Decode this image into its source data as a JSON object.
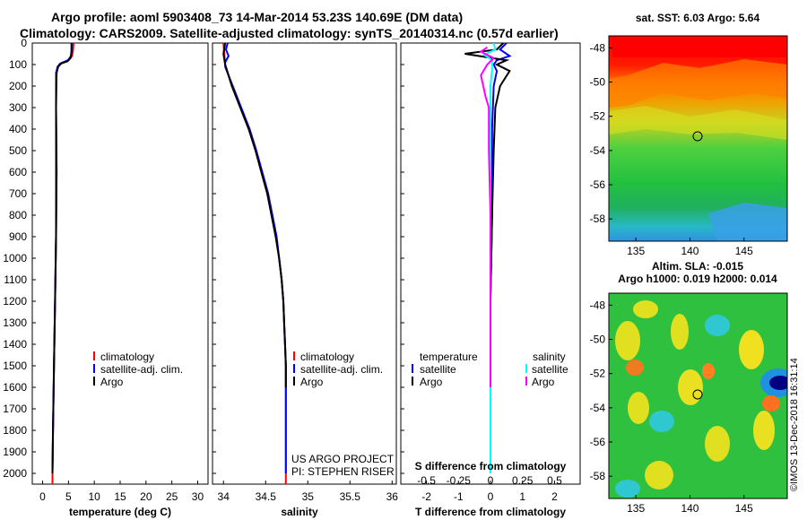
{
  "header": {
    "title_line1": "Argo profile: aoml 5903408_73 14-Mar-2014 53.23S 140.69E (DM data)",
    "title_line2": "Climatology: CARS2009. Satellite-adjusted climatology: synTS_20140314.nc (0.57d earlier)"
  },
  "colors": {
    "climatology": "#ff0000",
    "satellite": "#0000ff",
    "argo": "#000000",
    "salinity_satellite": "#00ffff",
    "salinity_argo": "#ff00ff"
  },
  "chart_data": [
    {
      "type": "line",
      "xlabel": "temperature (deg C)",
      "xticks": [
        0,
        5,
        10,
        15,
        20,
        25,
        30
      ],
      "xlim": [
        -2,
        32
      ],
      "ylim": [
        2050,
        0
      ],
      "yticks": [
        0,
        100,
        200,
        300,
        400,
        500,
        600,
        700,
        800,
        900,
        1000,
        1100,
        1200,
        1300,
        1400,
        1500,
        1600,
        1700,
        1800,
        1900,
        2000
      ],
      "legend": [
        "climatology",
        "satellite-adj. clim.",
        "Argo"
      ],
      "series": [
        {
          "name": "climatology",
          "points": [
            [
              6.0,
              0
            ],
            [
              5.9,
              30
            ],
            [
              5.7,
              60
            ],
            [
              5.0,
              80
            ],
            [
              3.5,
              95
            ],
            [
              3.0,
              110
            ],
            [
              2.6,
              140
            ],
            [
              2.6,
              300
            ],
            [
              2.7,
              600
            ],
            [
              2.6,
              900
            ],
            [
              2.4,
              1200
            ],
            [
              2.2,
              1500
            ],
            [
              2.0,
              1800
            ],
            [
              1.9,
              2000
            ],
            [
              1.9,
              2050
            ]
          ]
        },
        {
          "name": "satellite-adj. clim.",
          "points": [
            [
              5.6,
              0
            ],
            [
              5.6,
              30
            ],
            [
              5.5,
              60
            ],
            [
              4.9,
              80
            ],
            [
              3.4,
              95
            ],
            [
              2.9,
              110
            ],
            [
              2.6,
              140
            ],
            [
              2.6,
              300
            ],
            [
              2.6,
              600
            ],
            [
              2.6,
              900
            ],
            [
              2.4,
              1200
            ],
            [
              2.2,
              1500
            ],
            [
              2.0,
              1800
            ],
            [
              1.9,
              2000
            ]
          ]
        },
        {
          "name": "Argo",
          "points": [
            [
              5.6,
              0
            ],
            [
              5.6,
              40
            ],
            [
              5.4,
              70
            ],
            [
              4.8,
              85
            ],
            [
              3.6,
              95
            ],
            [
              3.0,
              110
            ],
            [
              2.7,
              140
            ],
            [
              2.6,
              300
            ],
            [
              2.7,
              600
            ],
            [
              2.6,
              900
            ],
            [
              2.4,
              1200
            ],
            [
              2.2,
              1500
            ],
            [
              2.0,
              1800
            ],
            [
              1.9,
              2000
            ]
          ]
        }
      ]
    },
    {
      "type": "line",
      "xlabel": "salinity",
      "xticks": [
        34,
        34.5,
        35,
        35.5,
        36
      ],
      "xticklabels": [
        "34",
        "34.5",
        "35",
        "35.5",
        "36"
      ],
      "xlim": [
        33.87,
        36.05
      ],
      "ylim": [
        2050,
        0
      ],
      "legend": [
        "climatology",
        "satellite-adj. clim.",
        "Argo"
      ],
      "annotation": [
        "US ARGO PROJECT",
        "PI: STEPHEN RISER"
      ],
      "series": [
        {
          "name": "climatology",
          "points": [
            [
              34.0,
              0
            ],
            [
              34.02,
              100
            ],
            [
              34.1,
              200
            ],
            [
              34.2,
              300
            ],
            [
              34.3,
              400
            ],
            [
              34.38,
              500
            ],
            [
              34.45,
              600
            ],
            [
              34.52,
              700
            ],
            [
              34.57,
              800
            ],
            [
              34.62,
              900
            ],
            [
              34.66,
              1000
            ],
            [
              34.69,
              1100
            ],
            [
              34.71,
              1200
            ],
            [
              34.72,
              1300
            ],
            [
              34.73,
              1400
            ],
            [
              34.74,
              1500
            ],
            [
              34.74,
              1700
            ],
            [
              34.74,
              2000
            ],
            [
              34.74,
              2050
            ]
          ]
        },
        {
          "name": "satellite-adj. clim.",
          "points": [
            [
              34.05,
              0
            ],
            [
              34.03,
              30
            ],
            [
              34.06,
              60
            ],
            [
              34.02,
              90
            ],
            [
              34.02,
              110
            ],
            [
              34.11,
              200
            ],
            [
              34.21,
              300
            ],
            [
              34.31,
              400
            ],
            [
              34.39,
              500
            ],
            [
              34.46,
              600
            ],
            [
              34.53,
              700
            ],
            [
              34.58,
              800
            ],
            [
              34.63,
              900
            ],
            [
              34.66,
              1000
            ],
            [
              34.69,
              1100
            ],
            [
              34.71,
              1200
            ],
            [
              34.72,
              1300
            ],
            [
              34.73,
              1400
            ],
            [
              34.74,
              1500
            ],
            [
              34.74,
              1700
            ],
            [
              34.74,
              2000
            ]
          ]
        },
        {
          "name": "Argo",
          "points": [
            [
              34.02,
              0
            ],
            [
              34.0,
              50
            ],
            [
              34.02,
              100
            ],
            [
              34.1,
              200
            ],
            [
              34.2,
              300
            ],
            [
              34.3,
              400
            ],
            [
              34.38,
              500
            ],
            [
              34.45,
              600
            ],
            [
              34.52,
              700
            ],
            [
              34.57,
              800
            ],
            [
              34.62,
              900
            ],
            [
              34.66,
              1000
            ],
            [
              34.69,
              1100
            ],
            [
              34.71,
              1200
            ],
            [
              34.72,
              1300
            ],
            [
              34.73,
              1400
            ],
            [
              34.74,
              1500
            ],
            [
              34.74,
              1600
            ]
          ]
        }
      ]
    },
    {
      "type": "line",
      "xlabel": "T difference from climatology",
      "xticks": [
        -2,
        -1,
        0,
        1,
        2
      ],
      "xlim": [
        -2.8,
        2.8
      ],
      "secondary_xlabel": "S difference from climatology",
      "secondary_xticks": [
        "-0.5",
        "-0.25",
        "0",
        "0.25",
        "0.5"
      ],
      "ylim": [
        2050,
        0
      ],
      "legend_temperature": {
        "title": "temperature",
        "items": [
          "satellite",
          "Argo"
        ]
      },
      "legend_salinity": {
        "title": "salinity",
        "items": [
          "satellite",
          "Argo"
        ]
      },
      "series": [
        {
          "name": "temperature satellite",
          "points": [
            [
              0.5,
              0
            ],
            [
              0.3,
              30
            ],
            [
              0.6,
              60
            ],
            [
              0.2,
              80
            ],
            [
              0.1,
              100
            ],
            [
              0.2,
              130
            ],
            [
              0.1,
              200
            ],
            [
              0.05,
              400
            ],
            [
              0.05,
              800
            ],
            [
              0.0,
              1200
            ],
            [
              0.0,
              1600
            ],
            [
              0.0,
              2000
            ]
          ]
        },
        {
          "name": "temperature Argo",
          "points": [
            [
              0.4,
              0
            ],
            [
              0.2,
              30
            ],
            [
              -0.8,
              50
            ],
            [
              0.5,
              80
            ],
            [
              0.2,
              100
            ],
            [
              0.6,
              130
            ],
            [
              0.3,
              200
            ],
            [
              0.15,
              300
            ],
            [
              0.1,
              500
            ],
            [
              0.05,
              800
            ],
            [
              0.0,
              1200
            ],
            [
              0.0,
              1600
            ],
            [
              0.0,
              2000
            ]
          ]
        },
        {
          "name": "salinity satellite",
          "points": [
            [
              0.1,
              0
            ],
            [
              0.15,
              30
            ],
            [
              -0.2,
              55
            ],
            [
              0.05,
              80
            ],
            [
              0.05,
              120
            ],
            [
              0.0,
              200
            ],
            [
              0.0,
              500
            ],
            [
              0.0,
              1000
            ],
            [
              0.0,
              1500
            ],
            [
              0.0,
              2000
            ]
          ]
        },
        {
          "name": "salinity Argo",
          "points": [
            [
              -0.1,
              20
            ],
            [
              -0.3,
              40
            ],
            [
              0.1,
              70
            ],
            [
              -0.1,
              100
            ],
            [
              -0.3,
              150
            ],
            [
              -0.15,
              250
            ],
            [
              -0.05,
              300
            ],
            [
              -0.05,
              500
            ],
            [
              0.0,
              800
            ],
            [
              0.0,
              1600
            ]
          ]
        }
      ]
    },
    {
      "type": "heatmap",
      "title": "sat. SST: 6.03 Argo: 5.64",
      "xticks": [
        "135",
        "140",
        "145"
      ],
      "yticks": [
        "-48",
        "-50",
        "-52",
        "-54",
        "-56",
        "-58"
      ],
      "xlim": [
        132.5,
        149
      ],
      "ylim": [
        -59.3,
        -47.3
      ],
      "marker": {
        "lon": 140.69,
        "lat": -53.23
      }
    },
    {
      "type": "heatmap",
      "title": "Altim. SLA: -0.015",
      "subtitle": "Argo h1000: 0.019 h2000: 0.014",
      "xticks": [
        "135",
        "140",
        "145"
      ],
      "yticks": [
        "-48",
        "-50",
        "-52",
        "-54",
        "-56",
        "-58"
      ],
      "xlim": [
        132.5,
        149
      ],
      "ylim": [
        -59.3,
        -47.3
      ],
      "marker": {
        "lon": 140.69,
        "lat": -53.23
      }
    }
  ],
  "credit": "©IMOS 13-Dec-2018 16:31:14"
}
